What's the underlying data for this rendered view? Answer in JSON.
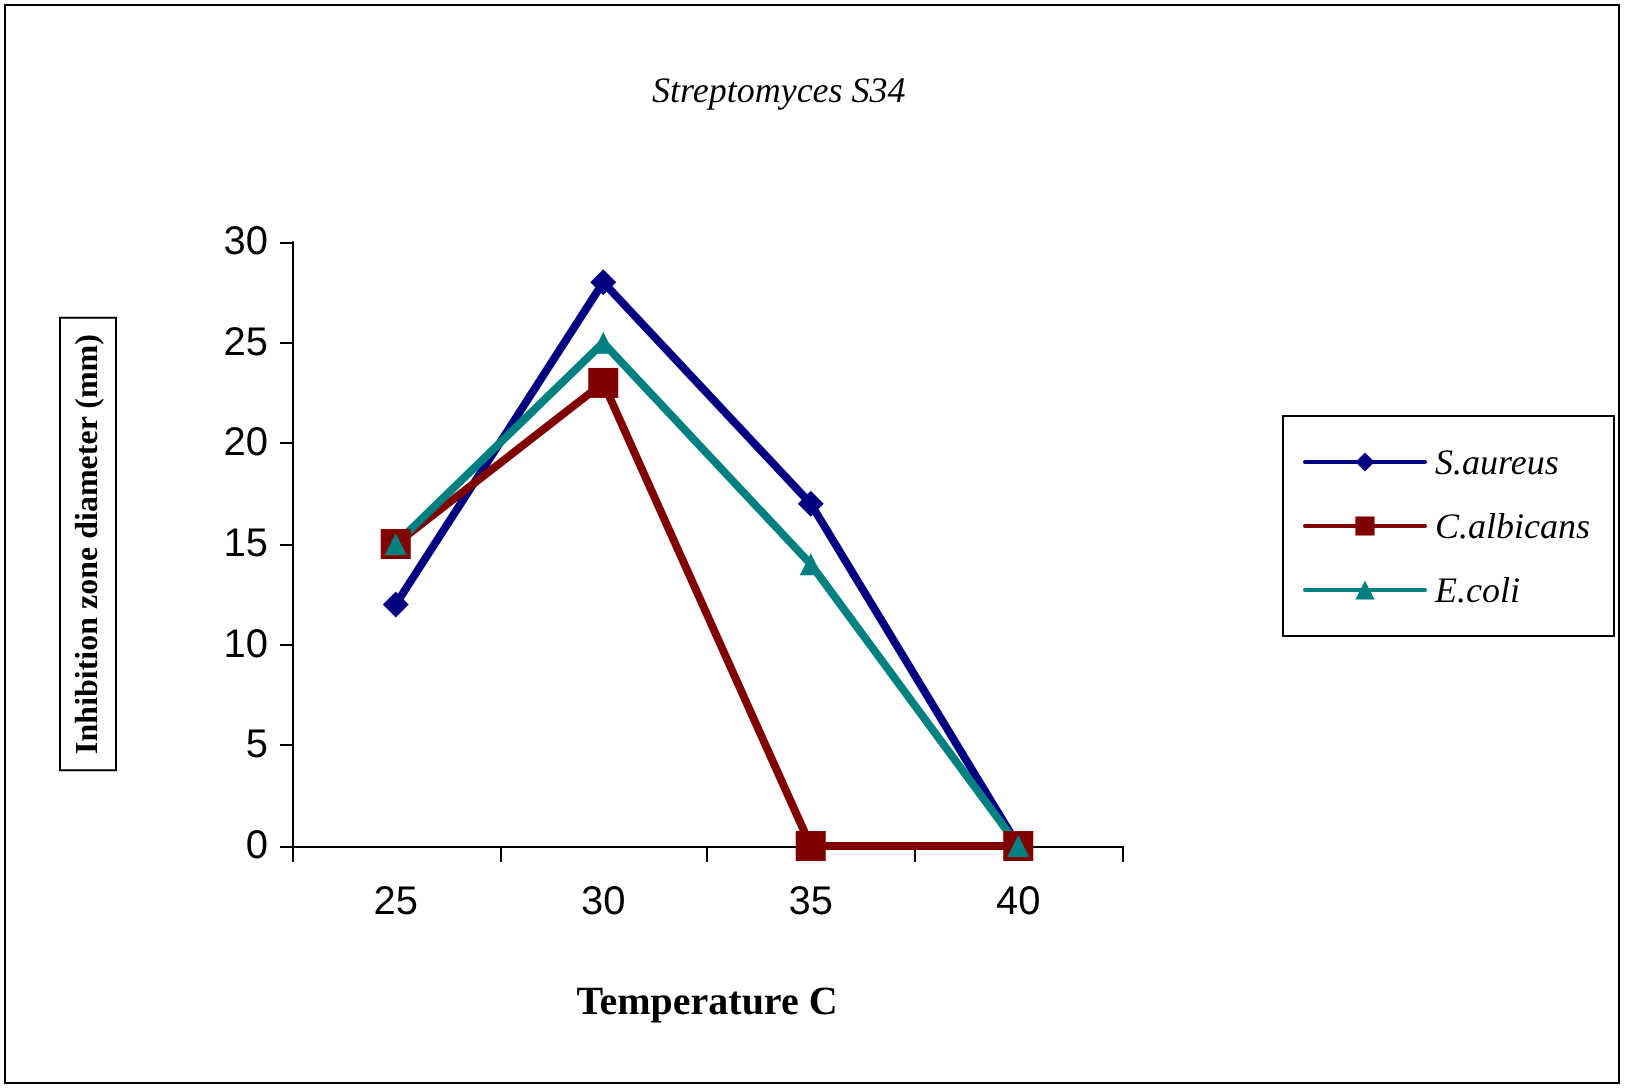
{
  "chart_data": {
    "type": "line",
    "title": "Streptomyces S34",
    "xlabel": "Temperature C",
    "ylabel": "Inhibition zone diameter (mm)",
    "categories": [
      "25",
      "30",
      "35",
      "40"
    ],
    "series": [
      {
        "name": "S.aureus",
        "color": "#000080",
        "marker": "diamond",
        "values": [
          12,
          28,
          17,
          0
        ]
      },
      {
        "name": "C.albicans",
        "color": "#800000",
        "marker": "square",
        "values": [
          15,
          23,
          0,
          0
        ]
      },
      {
        "name": "E.coli",
        "color": "#008080",
        "marker": "triangle",
        "values": [
          15,
          25,
          14,
          0
        ]
      }
    ],
    "ylim": [
      0,
      30
    ],
    "yticks": [
      0,
      5,
      10,
      15,
      20,
      25,
      30
    ],
    "grid": false,
    "legend": "right",
    "line_style": "solid"
  }
}
